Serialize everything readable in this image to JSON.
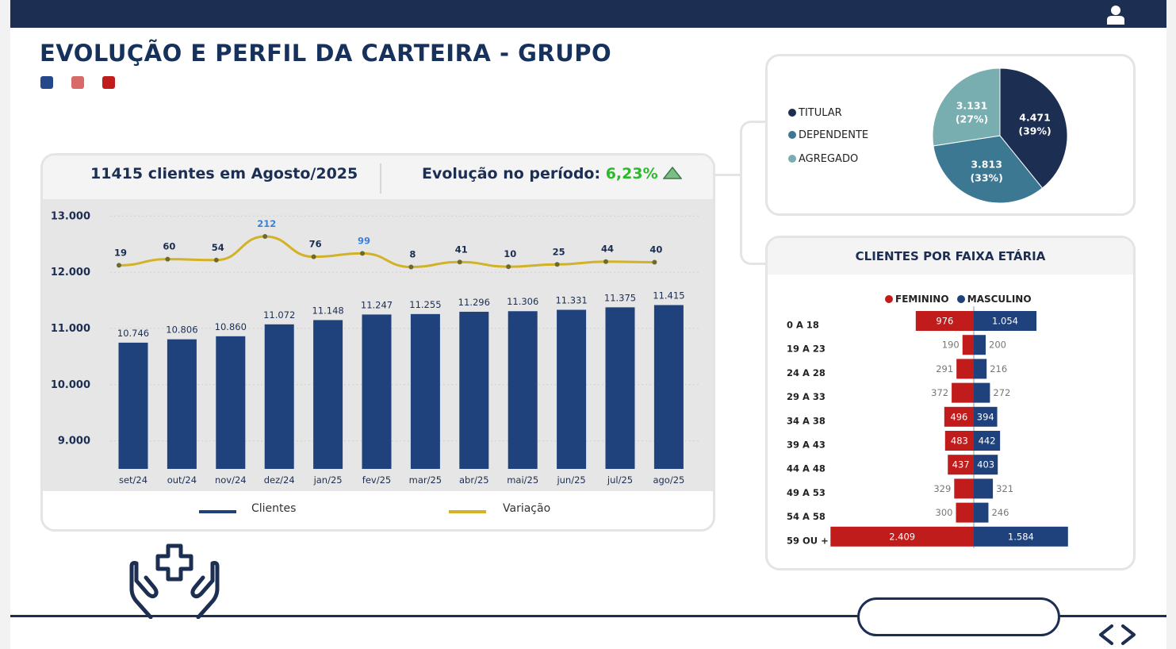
{
  "page": {
    "title": "EVOLUÇÃO E PERFIL DA CARTEIRA - GRUPO",
    "legend_dot_colors": [
      "#25488a",
      "#d86a6a",
      "#c01c1c"
    ]
  },
  "topbar": {
    "icon": "user-icon",
    "color": "#1c2e52"
  },
  "evolution": {
    "clients_summary": "11415 clientes em Agosto/2025",
    "period_label": "Evolução no período:",
    "period_value": "6,23%",
    "trend_icon": "triangle-up-icon",
    "legend": {
      "clients": "Clientes",
      "variation": "Variação"
    }
  },
  "chart_data": [
    {
      "type": "bar",
      "title": "",
      "categories": [
        "set/24",
        "out/24",
        "nov/24",
        "dez/24",
        "jan/25",
        "fev/25",
        "mar/25",
        "abr/25",
        "mai/25",
        "jun/25",
        "jul/25",
        "ago/25"
      ],
      "series": [
        {
          "name": "Clientes",
          "type": "bar",
          "color": "#1f427c",
          "values": [
            10746,
            10806,
            10860,
            11072,
            11148,
            11247,
            11255,
            11296,
            11306,
            11331,
            11375,
            11415
          ],
          "labels": [
            "10.746",
            "10.806",
            "10.860",
            "11.072",
            "11.148",
            "11.247",
            "11.255",
            "11.296",
            "11.306",
            "11.331",
            "11.375",
            "11.415"
          ]
        },
        {
          "name": "Variação",
          "type": "line",
          "color": "#d2b226",
          "values": [
            19,
            60,
            54,
            212,
            76,
            99,
            8,
            41,
            10,
            25,
            44,
            40
          ],
          "label_colors": [
            "#1c2e52",
            "#1c2e52",
            "#1c2e52",
            "#3b82d6",
            "#1c2e52",
            "#3b82d6",
            "#1c2e52",
            "#1c2e52",
            "#1c2e52",
            "#1c2e52",
            "#1c2e52",
            "#1c2e52"
          ]
        }
      ],
      "y_ticks": [
        9000,
        10000,
        11000,
        12000,
        13000
      ],
      "y_tick_labels": [
        "9.000",
        "10.000",
        "11.000",
        "12.000",
        "13.000"
      ],
      "ylim": [
        8500,
        13300
      ],
      "grid": true
    },
    {
      "type": "pie",
      "title": "",
      "categories": [
        "TITULAR",
        "DEPENDENTE",
        "AGREGADO"
      ],
      "values": [
        4471,
        3813,
        3131
      ],
      "labels": [
        "4.471",
        "3.813",
        "3.131"
      ],
      "percent_labels": [
        "(39%)",
        "(33%)",
        "(27%)"
      ],
      "colors": [
        "#1c2e52",
        "#3d7892",
        "#79aeb0"
      ]
    },
    {
      "type": "bar",
      "title": "CLIENTES POR FAIXA ETÁRIA",
      "orientation": "horizontal-diverging",
      "categories": [
        "0 A 18",
        "19 A 23",
        "24 A 28",
        "29 A 33",
        "34 A 38",
        "39 A 43",
        "44 A 48",
        "49 A 53",
        "54 A 58",
        "59 OU +"
      ],
      "series": [
        {
          "name": "FEMININO",
          "color": "#c01c1c",
          "values": [
            976,
            190,
            291,
            372,
            496,
            483,
            437,
            329,
            300,
            2409
          ],
          "labels": [
            "976",
            "190",
            "291",
            "372",
            "496",
            "483",
            "437",
            "329",
            "300",
            "2.409"
          ]
        },
        {
          "name": "MASCULINO",
          "color": "#1f427c",
          "values": [
            1054,
            200,
            216,
            272,
            394,
            442,
            403,
            321,
            246,
            1584
          ],
          "labels": [
            "1.054",
            "200",
            "216",
            "272",
            "394",
            "442",
            "403",
            "321",
            "246",
            "1.584"
          ]
        }
      ]
    }
  ],
  "footer": {
    "nav_icon": "prev-next-arrows-icon",
    "decor_icon": "hands-medical-cross-icon"
  }
}
